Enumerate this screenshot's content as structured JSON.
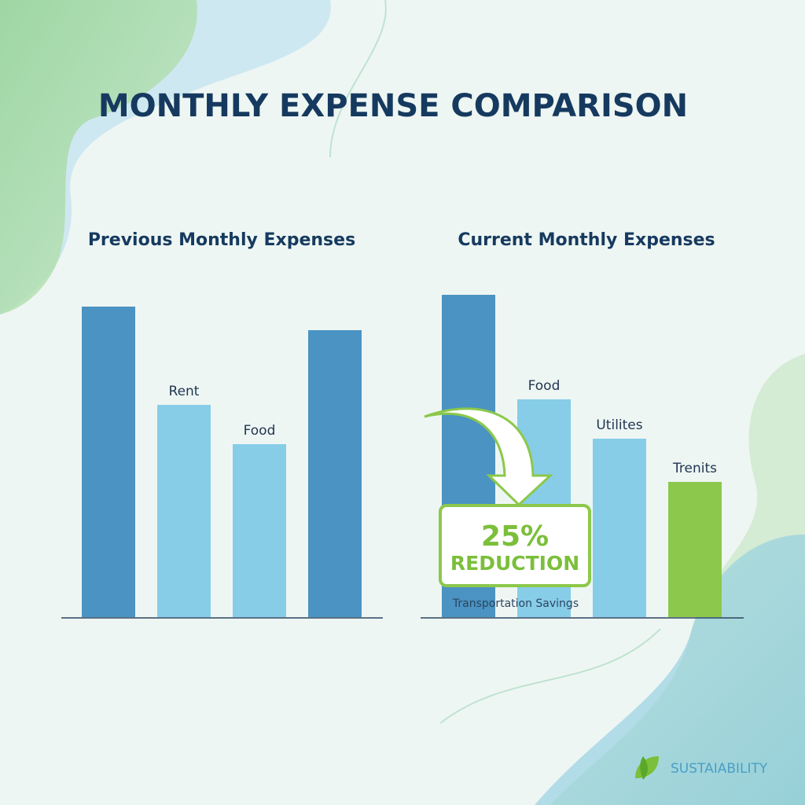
{
  "header": {
    "title": "MONTHLY EXPENSE COMPARISON"
  },
  "chart_data": [
    {
      "type": "bar",
      "title": "Previous Monthly Expenses",
      "categories": [
        null,
        "Rent",
        "Food",
        null
      ],
      "values": [
        395,
        270,
        220,
        365
      ],
      "colors": [
        "#4a93c2",
        "#87cde8",
        "#87cde8",
        "#4a93c2"
      ]
    },
    {
      "type": "bar",
      "title": "Current Monthly Expenses",
      "categories": [
        null,
        "Food",
        "Utilites",
        "Trenits"
      ],
      "values": [
        410,
        277,
        227,
        172
      ],
      "colors": [
        "#4a93c2",
        "#87cde8",
        "#87cde8",
        "#8cc84b"
      ]
    }
  ],
  "annotation": {
    "headline": "25%",
    "text": "REDUCTION",
    "caption": "Transportation Savings"
  },
  "footer": {
    "brand": "SUSTAIABILITY"
  }
}
